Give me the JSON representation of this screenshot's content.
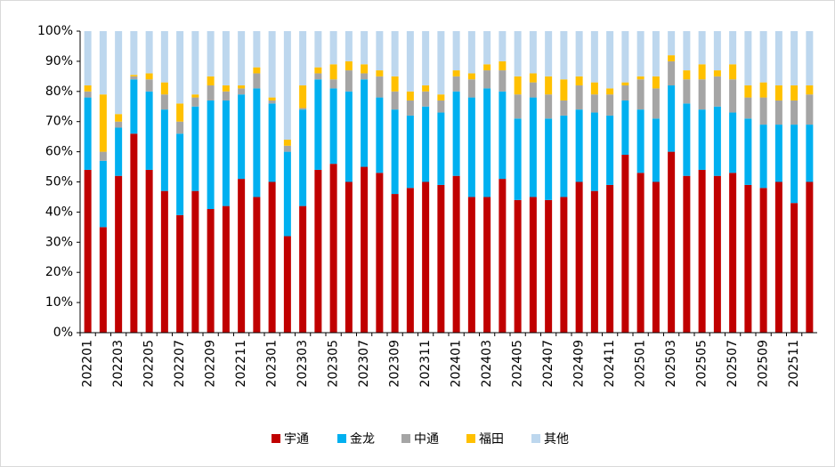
{
  "chart_data": {
    "type": "stacked_bar",
    "categories": [
      "202201",
      null,
      "202203",
      null,
      "202205",
      null,
      "202207",
      null,
      "202209",
      null,
      "202211",
      null,
      "202301",
      null,
      "202303",
      null,
      "202305",
      null,
      "202307",
      null,
      "202309",
      null,
      "202311",
      null,
      "202401",
      null,
      "202403",
      null,
      "202405",
      null,
      "202407",
      null,
      "202409",
      null,
      "202411",
      null,
      "202501",
      null,
      "202503",
      null,
      "202505",
      null,
      "202507",
      null,
      "202509",
      null,
      "202511",
      null
    ],
    "series": [
      {
        "name": "宇通",
        "color": "#c00000",
        "values": [
          54,
          35,
          52,
          66,
          54,
          47,
          39,
          47,
          41,
          42,
          51,
          45,
          50,
          32,
          42,
          54,
          56,
          50,
          55,
          53,
          46,
          48,
          50,
          49,
          52,
          45,
          45,
          51,
          44,
          45,
          44,
          45,
          50,
          47,
          49,
          59,
          53,
          50,
          60,
          52,
          54,
          52,
          53,
          49,
          48,
          50,
          43,
          50
        ]
      },
      {
        "name": "金龙",
        "color": "#00b0f0",
        "values": [
          24,
          22,
          16,
          18,
          26,
          27,
          27,
          28,
          36,
          35,
          28,
          36,
          26,
          28,
          32,
          30,
          25,
          30,
          29,
          25,
          28,
          24,
          25,
          24,
          28,
          33,
          36,
          29,
          27,
          33,
          27,
          27,
          24,
          26,
          23,
          18,
          21,
          21,
          22,
          24,
          20,
          23,
          20,
          22,
          21,
          19,
          26,
          19
        ]
      },
      {
        "name": "中通",
        "color": "#a5a5a5",
        "values": [
          2,
          3,
          2,
          1,
          4,
          5,
          4,
          3,
          5,
          3,
          2,
          5,
          1,
          2,
          0.5,
          2,
          3,
          7,
          2,
          7,
          6,
          5,
          5,
          4,
          5,
          6,
          6,
          7,
          8,
          5,
          8,
          5,
          8,
          6,
          7,
          5,
          10,
          10,
          8,
          8,
          10,
          10,
          11,
          7,
          9,
          8,
          8,
          10
        ]
      },
      {
        "name": "福田",
        "color": "#ffc000",
        "values": [
          2,
          19,
          2.5,
          0.5,
          2,
          4,
          6,
          1,
          3,
          2,
          1,
          2,
          1,
          2,
          7.5,
          2,
          5,
          3,
          3,
          2,
          5,
          3,
          2,
          2,
          2,
          2,
          2,
          3,
          6,
          3,
          6,
          7,
          3,
          4,
          2,
          1,
          1,
          4,
          2,
          3,
          5,
          2,
          5,
          4,
          5,
          5,
          5,
          3
        ]
      },
      {
        "name": "其他",
        "color": "#bdd7ee",
        "values": [
          18,
          21,
          27.5,
          14.5,
          14,
          17,
          24,
          21,
          15,
          18,
          18,
          12,
          22,
          36,
          18,
          12,
          11,
          10,
          11,
          13,
          15,
          20,
          18,
          21,
          13,
          14,
          11,
          10,
          15,
          14,
          15,
          16,
          15,
          17,
          19,
          17,
          15,
          15,
          8,
          13,
          11,
          13,
          11,
          18,
          17,
          18,
          18,
          18
        ]
      }
    ],
    "ylim": [
      0,
      100
    ],
    "yticks": [
      {
        "value": 0,
        "label": "0%"
      },
      {
        "value": 10,
        "label": "10%"
      },
      {
        "value": 20,
        "label": "20%"
      },
      {
        "value": 30,
        "label": "30%"
      },
      {
        "value": 40,
        "label": "40%"
      },
      {
        "value": 50,
        "label": "50%"
      },
      {
        "value": 60,
        "label": "60%"
      },
      {
        "value": 70,
        "label": "70%"
      },
      {
        "value": 80,
        "label": "80%"
      },
      {
        "value": 90,
        "label": "90%"
      },
      {
        "value": 100,
        "label": "100%"
      }
    ],
    "legend": "bottom"
  }
}
